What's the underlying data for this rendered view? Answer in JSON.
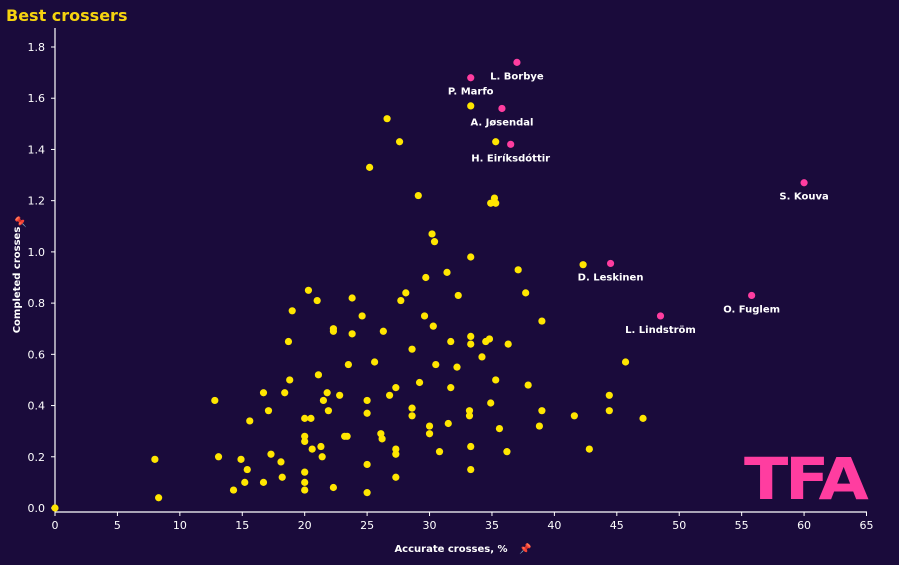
{
  "title": "Best crossers",
  "logo_text": "TFA",
  "colors": {
    "background": "#1a0b3b",
    "title": "#f5d30f",
    "player_points": "#ffe600",
    "highlight_points": "#ff3da0",
    "axis": "#ffffff"
  },
  "chart_data": {
    "type": "scatter",
    "title": "Best crossers",
    "xlabel": "Accurate crosses, %",
    "ylabel": "Completed crosses",
    "xlim": [
      0,
      65
    ],
    "ylim": [
      0,
      1.85
    ],
    "xticks": [
      0,
      5,
      10,
      15,
      20,
      25,
      30,
      35,
      40,
      45,
      50,
      55,
      60,
      65
    ],
    "yticks": [
      "0.0",
      "0.2",
      "0.4",
      "0.6",
      "0.8",
      "1.0",
      "1.2",
      "1.4",
      "1.6",
      "1.8"
    ],
    "highlighted": [
      {
        "name": "L. Borbye",
        "x": 37.0,
        "y": 1.74
      },
      {
        "name": "P. Marfo",
        "x": 33.3,
        "y": 1.68
      },
      {
        "name": "A. Jøsendal",
        "x": 35.8,
        "y": 1.56
      },
      {
        "name": "H. Eiríksdóttir",
        "x": 36.5,
        "y": 1.42
      },
      {
        "name": "S. Kouva",
        "x": 60.0,
        "y": 1.27
      },
      {
        "name": "D. Leskinen",
        "x": 44.5,
        "y": 0.955
      },
      {
        "name": "O. Fuglem",
        "x": 55.8,
        "y": 0.83
      },
      {
        "name": "L. Lindström",
        "x": 48.5,
        "y": 0.75
      }
    ],
    "others": [
      [
        0,
        0
      ],
      [
        8,
        0.19
      ],
      [
        8.3,
        0.04
      ],
      [
        12.8,
        0.42
      ],
      [
        13.1,
        0.2
      ],
      [
        14.3,
        0.07
      ],
      [
        14.9,
        0.19
      ],
      [
        15.2,
        0.1
      ],
      [
        15.4,
        0.15
      ],
      [
        15.6,
        0.34
      ],
      [
        16.7,
        0.45
      ],
      [
        16.7,
        0.1
      ],
      [
        17.1,
        0.38
      ],
      [
        17.3,
        0.21
      ],
      [
        18.1,
        0.18
      ],
      [
        18.2,
        0.12
      ],
      [
        18.4,
        0.45
      ],
      [
        18.7,
        0.65
      ],
      [
        18.8,
        0.5
      ],
      [
        19.0,
        0.77
      ],
      [
        20.0,
        0.35
      ],
      [
        20.0,
        0.28
      ],
      [
        20.0,
        0.26
      ],
      [
        20.0,
        0.14
      ],
      [
        20.0,
        0.1
      ],
      [
        20.0,
        0.07
      ],
      [
        20.3,
        0.85
      ],
      [
        20.5,
        0.35
      ],
      [
        20.6,
        0.23
      ],
      [
        21.0,
        0.81
      ],
      [
        21.1,
        0.52
      ],
      [
        21.3,
        0.24
      ],
      [
        21.4,
        0.2
      ],
      [
        21.5,
        0.42
      ],
      [
        21.8,
        0.45
      ],
      [
        21.9,
        0.38
      ],
      [
        22.3,
        0.7
      ],
      [
        22.3,
        0.69
      ],
      [
        22.3,
        0.08
      ],
      [
        22.8,
        0.44
      ],
      [
        23.2,
        0.28
      ],
      [
        23.4,
        0.28
      ],
      [
        23.5,
        0.56
      ],
      [
        23.8,
        0.82
      ],
      [
        23.8,
        0.68
      ],
      [
        24.6,
        0.75
      ],
      [
        25.0,
        0.42
      ],
      [
        25.0,
        0.37
      ],
      [
        25.0,
        0.17
      ],
      [
        25.0,
        0.06
      ],
      [
        25.2,
        1.33
      ],
      [
        25.6,
        0.57
      ],
      [
        26.1,
        0.29
      ],
      [
        26.2,
        0.27
      ],
      [
        26.3,
        0.69
      ],
      [
        26.6,
        1.52
      ],
      [
        26.8,
        0.44
      ],
      [
        27.3,
        0.47
      ],
      [
        27.3,
        0.23
      ],
      [
        27.3,
        0.21
      ],
      [
        27.3,
        0.12
      ],
      [
        27.6,
        1.43
      ],
      [
        27.7,
        0.81
      ],
      [
        28.1,
        0.84
      ],
      [
        28.6,
        0.62
      ],
      [
        28.6,
        0.39
      ],
      [
        28.6,
        0.36
      ],
      [
        29.1,
        1.22
      ],
      [
        29.2,
        0.49
      ],
      [
        29.6,
        0.75
      ],
      [
        29.7,
        0.9
      ],
      [
        30.0,
        0.32
      ],
      [
        30.0,
        0.29
      ],
      [
        30.2,
        1.07
      ],
      [
        30.3,
        0.71
      ],
      [
        30.4,
        1.04
      ],
      [
        30.5,
        0.56
      ],
      [
        30.8,
        0.22
      ],
      [
        31.4,
        0.92
      ],
      [
        31.5,
        0.33
      ],
      [
        31.7,
        0.65
      ],
      [
        31.7,
        0.47
      ],
      [
        32.2,
        0.55
      ],
      [
        32.3,
        0.83
      ],
      [
        33.2,
        0.38
      ],
      [
        33.2,
        0.36
      ],
      [
        33.3,
        1.57
      ],
      [
        33.3,
        0.98
      ],
      [
        33.3,
        0.67
      ],
      [
        33.3,
        0.64
      ],
      [
        33.3,
        0.24
      ],
      [
        33.3,
        0.15
      ],
      [
        34.2,
        0.59
      ],
      [
        34.5,
        0.65
      ],
      [
        34.8,
        0.66
      ],
      [
        34.9,
        0.41
      ],
      [
        34.9,
        1.19
      ],
      [
        35.2,
        1.21
      ],
      [
        35.3,
        1.43
      ],
      [
        35.3,
        1.19
      ],
      [
        35.3,
        0.5
      ],
      [
        35.6,
        0.31
      ],
      [
        36.2,
        0.22
      ],
      [
        36.3,
        0.64
      ],
      [
        37.1,
        0.93
      ],
      [
        37.7,
        0.84
      ],
      [
        37.9,
        0.48
      ],
      [
        38.8,
        0.32
      ],
      [
        39.0,
        0.38
      ],
      [
        39.0,
        0.73
      ],
      [
        41.6,
        0.36
      ],
      [
        42.3,
        0.95
      ],
      [
        42.8,
        0.23
      ],
      [
        44.4,
        0.44
      ],
      [
        44.4,
        0.38
      ],
      [
        45.7,
        0.57
      ],
      [
        47.1,
        0.35
      ]
    ]
  }
}
